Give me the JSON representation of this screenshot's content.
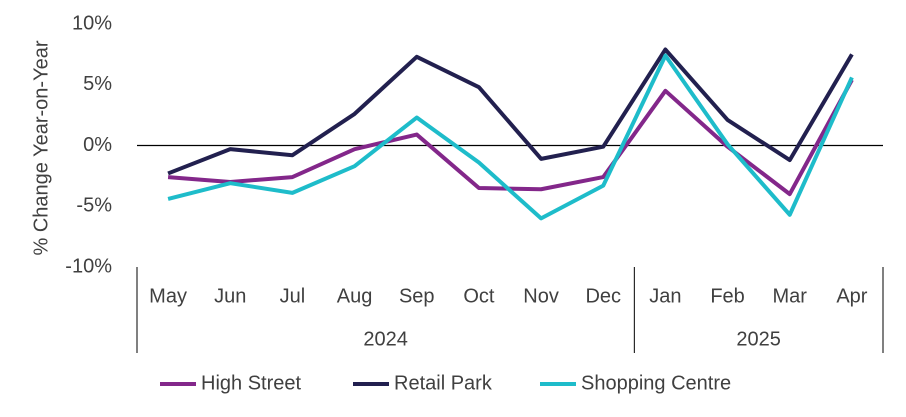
{
  "chart_data": {
    "type": "line",
    "y_label": "% Change Year-on-Year",
    "categories": [
      "May",
      "Jun",
      "Jul",
      "Aug",
      "Sep",
      "Oct",
      "Nov",
      "Dec",
      "Jan",
      "Feb",
      "Mar",
      "Apr"
    ],
    "category_groups": [
      {
        "label": "2024",
        "size": 8
      },
      {
        "label": "2025",
        "size": 4
      }
    ],
    "series": [
      {
        "name": "High Street",
        "color": "#83278a",
        "values": [
          -2.6,
          -3.0,
          -2.6,
          -0.3,
          0.9,
          -3.5,
          -3.6,
          -2.6,
          4.5,
          -0.1,
          -4.0,
          5.4
        ]
      },
      {
        "name": "Retail Park",
        "color": "#22204f",
        "values": [
          -2.3,
          -0.3,
          -0.8,
          2.6,
          7.3,
          4.8,
          -1.1,
          -0.1,
          7.9,
          2.1,
          -1.2,
          7.5
        ]
      },
      {
        "name": "Shopping Centre",
        "color": "#1ebcca",
        "values": [
          -4.4,
          -3.1,
          -3.9,
          -1.7,
          2.3,
          -1.4,
          -6.0,
          -3.3,
          7.4,
          0.1,
          -5.7,
          5.6
        ]
      }
    ],
    "ylim": [
      -10,
      10
    ],
    "yticks": [
      {
        "value": -10,
        "label": "-10%"
      },
      {
        "value": -5,
        "label": "-5%"
      },
      {
        "value": 0,
        "label": "0%"
      },
      {
        "value": 5,
        "label": "5%"
      },
      {
        "value": 10,
        "label": "10%"
      }
    ],
    "grid": false,
    "legend": "bottom"
  }
}
